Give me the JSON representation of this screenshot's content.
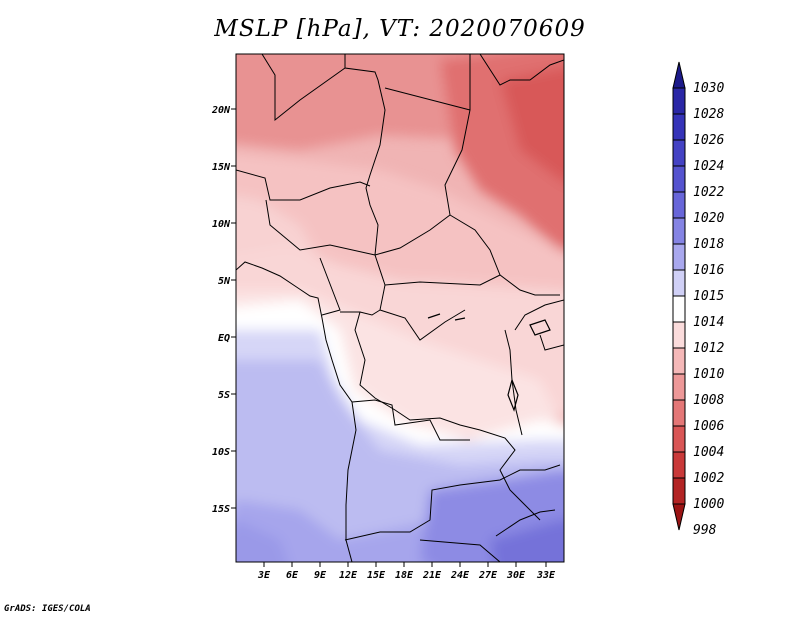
{
  "title": "MSLP [hPa], VT: 2020070609",
  "credit": "GrADS: IGES/COLA",
  "map": {
    "lat_labels": [
      "20N",
      "15N",
      "10N",
      "5N",
      "EQ",
      "5S",
      "10S",
      "15S"
    ],
    "lon_labels": [
      "3E",
      "6E",
      "9E",
      "12E",
      "15E",
      "18E",
      "21E",
      "24E",
      "27E",
      "30E",
      "33E"
    ]
  },
  "colorbar": {
    "levels": [
      "1030",
      "1028",
      "1026",
      "1024",
      "1022",
      "1020",
      "1018",
      "1016",
      "1015",
      "1014",
      "1012",
      "1010",
      "1008",
      "1006",
      "1004",
      "1002",
      "1000",
      "998"
    ],
    "colors": [
      "#1c1a8a",
      "#2a27a6",
      "#3533b8",
      "#4442c4",
      "#5553cf",
      "#6866d9",
      "#8584e4",
      "#a9a8ee",
      "#d0d0f6",
      "#ffffff",
      "#fbdcdc",
      "#f5b8b8",
      "#ed9898",
      "#e47777",
      "#d95656",
      "#c93939",
      "#b32424",
      "#9b1414"
    ]
  }
}
